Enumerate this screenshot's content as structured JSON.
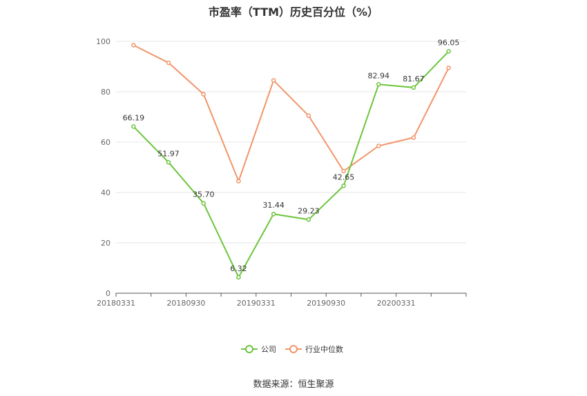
{
  "chart_data": {
    "type": "line",
    "title": "市盈率（TTM）历史百分位（%）",
    "x": [
      "20180331",
      "20180630",
      "20180930",
      "20181231",
      "20190331",
      "20190630",
      "20190930",
      "20191231",
      "20200331",
      "20200630"
    ],
    "x_tick_labels": [
      "20180331",
      "20180930",
      "20190331",
      "20190930",
      "20200331"
    ],
    "ylim": [
      0,
      100
    ],
    "y_ticks": [
      0,
      20,
      40,
      60,
      80,
      100
    ],
    "grid": true,
    "legend_position": "bottom",
    "series": [
      {
        "name": "公司",
        "color": "#6cc53b",
        "values": [
          66.19,
          51.97,
          35.7,
          6.32,
          31.44,
          29.23,
          42.65,
          82.94,
          81.67,
          96.05
        ],
        "labels": [
          "66.19",
          "51.97",
          "35.70",
          "6.32",
          "31.44",
          "29.23",
          "42.65",
          "82.94",
          "81.67",
          "96.05"
        ]
      },
      {
        "name": "行业中位数",
        "color": "#f29468",
        "values": [
          98.5,
          91.5,
          79.0,
          44.5,
          84.5,
          70.5,
          48.5,
          58.5,
          61.8,
          89.5
        ]
      }
    ],
    "source": "数据来源：恒生聚源"
  }
}
